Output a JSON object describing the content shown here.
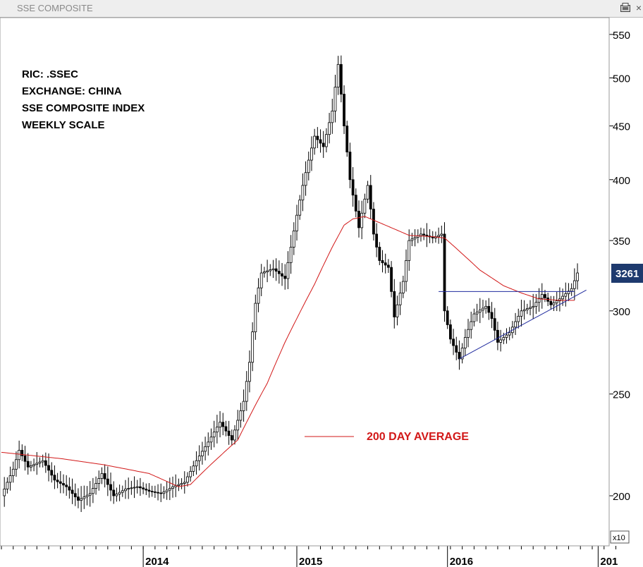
{
  "window": {
    "title": "SSE COMPOSITE",
    "export_icon": "export-icon",
    "close_icon": "close-icon"
  },
  "annotations": {
    "lines": [
      "RIC: .SSEC",
      "EXCHANGE: CHINA",
      "SSE COMPOSITE INDEX",
      "WEEKLY SCALE"
    ],
    "ma_label": "200 DAY AVERAGE"
  },
  "price_tag": {
    "value": "3261",
    "color": "#1e3a6e"
  },
  "axis_multiplier": "x10",
  "colors": {
    "ma": "#d21818",
    "trendline": "#1f2a9e",
    "candle": "#000000"
  },
  "chart_data": {
    "type": "candlestick",
    "title": "SSE COMPOSITE",
    "y_scale": "log",
    "ylim": [
      185,
      570
    ],
    "y_ticks": [
      550,
      500,
      450,
      400,
      350,
      300,
      250,
      200
    ],
    "y_tick_unit": "x10",
    "x_labels": [
      {
        "label": "2014",
        "week": 48
      },
      {
        "label": "2015",
        "week": 100
      },
      {
        "label": "2016",
        "week": 151
      },
      {
        "label": "201",
        "week": 202
      }
    ],
    "x_range_weeks": [
      0,
      224
    ],
    "last_value": 3261,
    "price_series": [
      [
        0,
        200
      ],
      [
        4,
        212
      ],
      [
        6,
        221
      ],
      [
        9,
        213
      ],
      [
        14,
        216
      ],
      [
        18,
        207
      ],
      [
        22,
        204
      ],
      [
        26,
        198
      ],
      [
        30,
        201
      ],
      [
        34,
        210
      ],
      [
        38,
        200
      ],
      [
        42,
        203
      ],
      [
        46,
        204
      ],
      [
        50,
        202
      ],
      [
        54,
        201
      ],
      [
        58,
        204
      ],
      [
        62,
        206
      ],
      [
        66,
        216
      ],
      [
        70,
        225
      ],
      [
        74,
        235
      ],
      [
        78,
        226
      ],
      [
        82,
        246
      ],
      [
        84,
        268
      ],
      [
        86,
        305
      ],
      [
        88,
        326
      ],
      [
        92,
        329
      ],
      [
        96,
        322
      ],
      [
        98,
        345
      ],
      [
        102,
        395
      ],
      [
        106,
        440
      ],
      [
        109,
        430
      ],
      [
        112,
        465
      ],
      [
        114,
        515
      ],
      [
        116,
        450
      ],
      [
        118,
        400
      ],
      [
        121,
        360
      ],
      [
        124,
        395
      ],
      [
        126,
        355
      ],
      [
        128,
        335
      ],
      [
        131,
        330
      ],
      [
        133,
        296
      ],
      [
        136,
        320
      ],
      [
        138,
        350
      ],
      [
        142,
        355
      ],
      [
        146,
        352
      ],
      [
        149,
        355
      ],
      [
        150,
        300
      ],
      [
        152,
        282
      ],
      [
        155,
        270
      ],
      [
        157,
        283
      ],
      [
        160,
        298
      ],
      [
        164,
        303
      ],
      [
        166,
        295
      ],
      [
        168,
        280
      ],
      [
        172,
        286
      ],
      [
        176,
        300
      ],
      [
        180,
        303
      ],
      [
        183,
        311
      ],
      [
        186,
        304
      ],
      [
        189,
        308
      ],
      [
        193,
        315
      ],
      [
        195,
        326
      ]
    ],
    "ma_series": [
      [
        0,
        220
      ],
      [
        20,
        217
      ],
      [
        35,
        214
      ],
      [
        50,
        210
      ],
      [
        60,
        204
      ],
      [
        64,
        205
      ],
      [
        70,
        213
      ],
      [
        80,
        226
      ],
      [
        90,
        256
      ],
      [
        96,
        280
      ],
      [
        100,
        295
      ],
      [
        106,
        318
      ],
      [
        112,
        345
      ],
      [
        116,
        362
      ],
      [
        119,
        367
      ],
      [
        123,
        369
      ],
      [
        130,
        362
      ],
      [
        138,
        354
      ],
      [
        146,
        353
      ],
      [
        150,
        352
      ],
      [
        156,
        340
      ],
      [
        162,
        328
      ],
      [
        170,
        317
      ],
      [
        176,
        312
      ],
      [
        182,
        308
      ],
      [
        189,
        307
      ],
      [
        194,
        307
      ]
    ],
    "resistance_line": {
      "from": [
        148,
        313
      ],
      "to": [
        194,
        313
      ]
    },
    "support_line": {
      "from": [
        155,
        270
      ],
      "to": [
        198,
        314
      ]
    },
    "legend": [
      {
        "name": "200 DAY AVERAGE",
        "color": "#d21818"
      }
    ]
  }
}
